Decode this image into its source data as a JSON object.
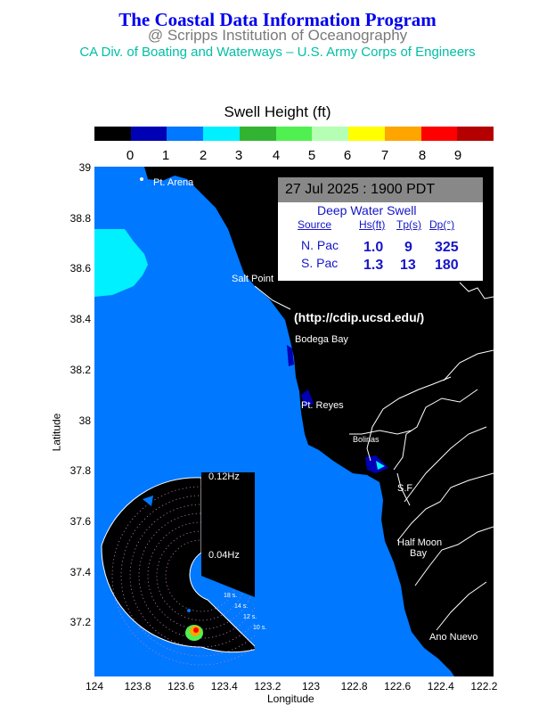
{
  "header": {
    "title": "The Coastal Data Information Program",
    "subtitle": "@ Scripps Institution of Oceanography",
    "sponsors": "CA Div. of Boating and Waterways – U.S. Army Corps of Engineers"
  },
  "colorbar": {
    "title": "Swell Height (ft)",
    "labels": [
      "0",
      "1",
      "2",
      "3",
      "4",
      "5",
      "6",
      "7",
      "8",
      "9"
    ],
    "colors": [
      "#000000",
      "#0000b4",
      "#0078ff",
      "#00f0ff",
      "#32b432",
      "#50f050",
      "#b4ffb4",
      "#ffff00",
      "#ffa500",
      "#ff0000",
      "#b40000"
    ]
  },
  "map": {
    "y_ticks": [
      "39",
      "38.8",
      "38.6",
      "38.4",
      "38.2",
      "38",
      "37.8",
      "37.6",
      "37.4",
      "37.2"
    ],
    "x_ticks": [
      "124",
      "123.8",
      "123.6",
      "123.4",
      "123.2",
      "123",
      "122.8",
      "122.6",
      "122.4",
      "122.2"
    ],
    "ylabel": "Latitude",
    "xlabel": "Longitude",
    "url": "(http://cdip.ucsd.edu/)",
    "places": {
      "pt_arena": "Pt. Arena",
      "salt_point": "Salt Point",
      "bodega_bay": "Bodega Bay",
      "pt_reyes": "Pt. Reyes",
      "bolinas": "Bolinas",
      "sf": "S.F.",
      "half_moon_1": "Half Moon",
      "half_moon_2": "Bay",
      "ano_nuevo": "Ano Nuevo"
    },
    "ocean_color": "#0078ff",
    "land_color": "#000000"
  },
  "info": {
    "datetime": "27 Jul 2025 : 1900 PDT",
    "heading": "Deep Water Swell",
    "col_source": "Source",
    "col_hs": "Hs(ft)",
    "col_tp": "Tp(s)",
    "col_dp": "Dp(°)",
    "rows": [
      {
        "source": "N. Pac",
        "hs": "1.0",
        "tp": "9",
        "dp": "325"
      },
      {
        "source": "S. Pac",
        "hs": "1.3",
        "tp": "13",
        "dp": "180"
      }
    ]
  },
  "spectrum": {
    "freq_outer": "0.12Hz",
    "freq_inner": "0.04Hz",
    "periods": [
      "18 s.",
      "14 s.",
      "12 s.",
      "10 s."
    ]
  }
}
